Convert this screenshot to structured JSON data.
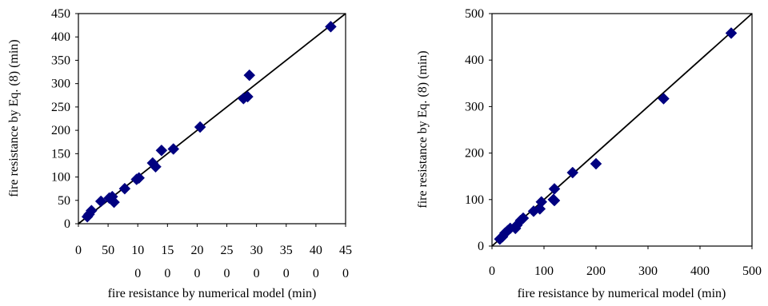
{
  "chart_data": [
    {
      "type": "scatter",
      "xlabel": "fire resistance by numerical model (min)",
      "ylabel": "fire resistance by Eq. (8) (min)",
      "xlim": [
        0,
        450
      ],
      "ylim": [
        0,
        450
      ],
      "x_ticks_top": [
        "0",
        "50",
        "10",
        "15",
        "20",
        "25",
        "30",
        "35",
        "40",
        "45"
      ],
      "x_ticks_bottom": [
        "",
        "",
        "0",
        "0",
        "0",
        "0",
        "0",
        "0",
        "0",
        "0"
      ],
      "y_ticks": [
        "0",
        "50",
        "100",
        "150",
        "200",
        "250",
        "300",
        "350",
        "400",
        "450"
      ],
      "reference_line": "y = x",
      "marker": "diamond",
      "marker_color": "#000080",
      "points": [
        {
          "x": 15,
          "y": 15
        },
        {
          "x": 18,
          "y": 20
        },
        {
          "x": 22,
          "y": 28
        },
        {
          "x": 38,
          "y": 48
        },
        {
          "x": 52,
          "y": 55
        },
        {
          "x": 57,
          "y": 58
        },
        {
          "x": 60,
          "y": 46
        },
        {
          "x": 78,
          "y": 75
        },
        {
          "x": 98,
          "y": 95
        },
        {
          "x": 102,
          "y": 98
        },
        {
          "x": 125,
          "y": 130
        },
        {
          "x": 130,
          "y": 122
        },
        {
          "x": 140,
          "y": 157
        },
        {
          "x": 160,
          "y": 160
        },
        {
          "x": 205,
          "y": 207
        },
        {
          "x": 278,
          "y": 268
        },
        {
          "x": 285,
          "y": 272
        },
        {
          "x": 288,
          "y": 318
        },
        {
          "x": 425,
          "y": 422
        }
      ]
    },
    {
      "type": "scatter",
      "xlabel": "fire resistance by numerical model (min)",
      "ylabel": "fire resistance by Eq. (8) (min)",
      "xlim": [
        0,
        500
      ],
      "ylim": [
        0,
        500
      ],
      "x_ticks": [
        "0",
        "100",
        "200",
        "300",
        "400",
        "500"
      ],
      "y_ticks": [
        "0",
        "100",
        "200",
        "300",
        "400",
        "500"
      ],
      "reference_line": "y = x",
      "marker": "diamond",
      "marker_color": "#000080",
      "points": [
        {
          "x": 15,
          "y": 15
        },
        {
          "x": 20,
          "y": 20
        },
        {
          "x": 25,
          "y": 28
        },
        {
          "x": 30,
          "y": 33
        },
        {
          "x": 35,
          "y": 38
        },
        {
          "x": 45,
          "y": 38
        },
        {
          "x": 48,
          "y": 45
        },
        {
          "x": 55,
          "y": 55
        },
        {
          "x": 60,
          "y": 60
        },
        {
          "x": 80,
          "y": 75
        },
        {
          "x": 92,
          "y": 80
        },
        {
          "x": 95,
          "y": 95
        },
        {
          "x": 118,
          "y": 100
        },
        {
          "x": 120,
          "y": 98
        },
        {
          "x": 120,
          "y": 123
        },
        {
          "x": 155,
          "y": 158
        },
        {
          "x": 200,
          "y": 177
        },
        {
          "x": 330,
          "y": 317
        },
        {
          "x": 460,
          "y": 458
        }
      ]
    }
  ]
}
